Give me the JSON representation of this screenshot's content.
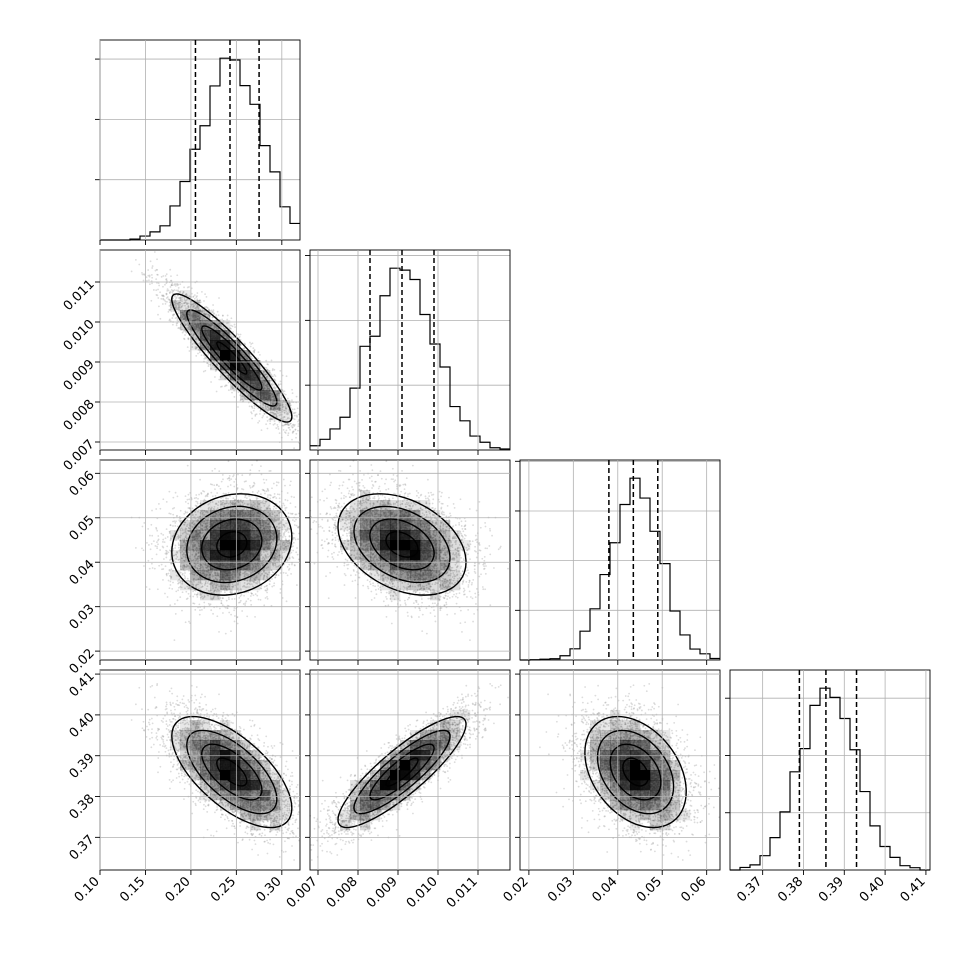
{
  "chart_data": {
    "type": "corner",
    "title": "",
    "n_params": 4,
    "params": [
      {
        "label": "",
        "mean": 0.245,
        "std": 0.033,
        "range": [
          0.1,
          0.32
        ],
        "quantiles": [
          0.205,
          0.243,
          0.275
        ],
        "x_ticks": [
          0.1,
          0.15,
          0.2,
          0.25,
          0.3
        ],
        "x_tick_labels": [
          "0.10",
          "0.15",
          "0.20",
          "0.25",
          "0.30"
        ],
        "y_ticks": [],
        "y_tick_labels": []
      },
      {
        "label": "",
        "mean": 0.0091,
        "std": 0.0008,
        "range": [
          0.0068,
          0.0118
        ],
        "quantiles": [
          0.0083,
          0.0091,
          0.0099
        ],
        "x_ticks": [
          0.007,
          0.008,
          0.009,
          0.01,
          0.011
        ],
        "x_tick_labels": [
          "0.007",
          "0.008",
          "0.009",
          "0.010",
          "0.011"
        ],
        "y_ticks": [
          0.007,
          0.008,
          0.009,
          0.01,
          0.011
        ],
        "y_tick_labels": [
          "0.007",
          "0.008",
          "0.009",
          "0.010",
          "0.011"
        ]
      },
      {
        "label": "",
        "mean": 0.044,
        "std": 0.0057,
        "range": [
          0.018,
          0.063
        ],
        "quantiles": [
          0.038,
          0.0435,
          0.049
        ],
        "x_ticks": [
          0.02,
          0.03,
          0.04,
          0.05,
          0.06
        ],
        "x_tick_labels": [
          "0.02",
          "0.03",
          "0.04",
          "0.05",
          "0.06"
        ],
        "y_ticks": [
          0.02,
          0.03,
          0.04,
          0.05,
          0.06
        ],
        "y_tick_labels": [
          "0.02",
          "0.03",
          "0.04",
          "0.05",
          "0.06"
        ]
      },
      {
        "label": "",
        "mean": 0.386,
        "std": 0.0068,
        "range": [
          0.362,
          0.411
        ],
        "quantiles": [
          0.379,
          0.3855,
          0.393
        ],
        "x_ticks": [
          0.37,
          0.38,
          0.39,
          0.4,
          0.41
        ],
        "x_tick_labels": [
          "0.37",
          "0.38",
          "0.39",
          "0.40",
          "0.41"
        ],
        "y_ticks": [
          0.37,
          0.38,
          0.39,
          0.4,
          0.41
        ],
        "y_tick_labels": [
          "0.37",
          "0.38",
          "0.39",
          "0.40",
          "0.41"
        ]
      }
    ],
    "correlations": [
      [
        1.0,
        -0.92,
        0.15,
        -0.65
      ],
      [
        -0.92,
        1.0,
        -0.35,
        0.86
      ],
      [
        0.15,
        -0.35,
        1.0,
        -0.35
      ],
      [
        -0.65,
        0.86,
        -0.35,
        1.0
      ]
    ],
    "histogram_bins": 20,
    "diagonal_quantiles": [
      0.16,
      0.5,
      0.84
    ],
    "contour_levels_sigma": [
      0.5,
      1.0,
      1.5,
      2.0
    ],
    "grid": true,
    "colors": {
      "contour": "#000000",
      "points": "#9a9a9a",
      "density": "#000000",
      "grid": "#b0b0b0"
    }
  }
}
